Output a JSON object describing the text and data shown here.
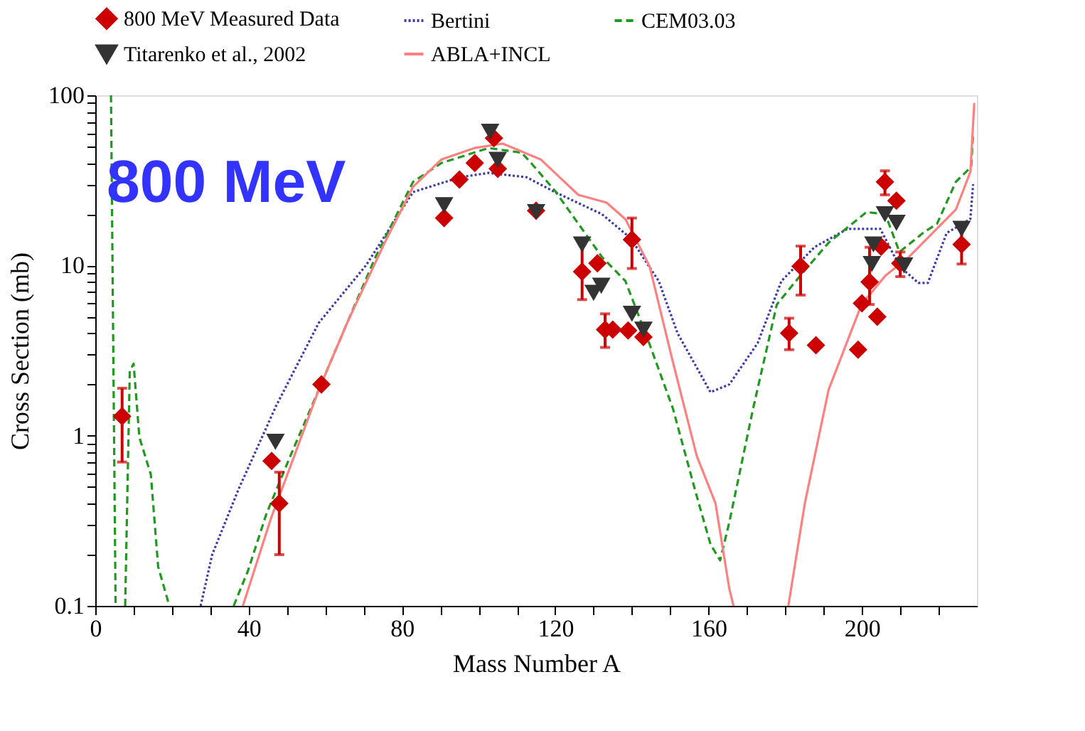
{
  "chart_data": {
    "type": "line",
    "xlabel": "Mass Number A",
    "ylabel": "Cross Section (mb)",
    "annotations": [
      "800 MeV"
    ],
    "log": "y",
    "grid": false,
    "legend": "top",
    "xlim": [
      0,
      230
    ],
    "ylim": [
      0.1,
      100
    ],
    "xticks": [
      0,
      {
        "value": 10,
        "label": null
      },
      {
        "value": 20,
        "label": null
      },
      {
        "value": 30,
        "label": null
      },
      40,
      {
        "value": 50,
        "label": null
      },
      {
        "value": 60,
        "label": null
      },
      {
        "value": 70,
        "label": null
      },
      80,
      {
        "value": 90,
        "label": null
      },
      {
        "value": 100,
        "label": null
      },
      {
        "value": 110,
        "label": null
      },
      120,
      {
        "value": 130,
        "label": null
      },
      {
        "value": 140,
        "label": null
      },
      {
        "value": 150,
        "label": null
      },
      160,
      {
        "value": 170,
        "label": null
      },
      {
        "value": 180,
        "label": null
      },
      {
        "value": 190,
        "label": null
      },
      200,
      {
        "value": 210,
        "label": null
      },
      {
        "value": 220,
        "label": null
      }
    ],
    "yticks": [
      0.1,
      {
        "value": 0.2,
        "label": null
      },
      {
        "value": 0.3,
        "label": null
      },
      {
        "value": 0.4,
        "label": null
      },
      {
        "value": 0.5,
        "label": null
      },
      {
        "value": 0.6,
        "label": null
      },
      {
        "value": 0.7,
        "label": null
      },
      {
        "value": 0.8,
        "label": null
      },
      {
        "value": 0.9,
        "label": null
      },
      1,
      {
        "value": 2,
        "label": null
      },
      {
        "value": 3,
        "label": null
      },
      {
        "value": 4,
        "label": null
      },
      {
        "value": 5,
        "label": null
      },
      {
        "value": 6,
        "label": null
      },
      {
        "value": 7,
        "label": null
      },
      {
        "value": 8,
        "label": null
      },
      {
        "value": 9,
        "label": null
      },
      10,
      {
        "value": 20,
        "label": null
      },
      {
        "value": 30,
        "label": null
      },
      {
        "value": 40,
        "label": null
      },
      {
        "value": 50,
        "label": null
      },
      {
        "value": 60,
        "label": null
      },
      {
        "value": 70,
        "label": null
      },
      {
        "value": 80,
        "label": null
      },
      {
        "value": 90,
        "label": null
      },
      100
    ],
    "series": [
      {
        "name": "800 MeV Measured Data",
        "type": "scatter",
        "marker": "diamond",
        "color": "#cc0000",
        "x": [
          7,
          46,
          48,
          59,
          91,
          95,
          99,
          104,
          105,
          115,
          127,
          131,
          133,
          135,
          139,
          140,
          143,
          181,
          184,
          188,
          199,
          200,
          202,
          204,
          205,
          206,
          209,
          210,
          226
        ],
        "values": [
          1.3,
          0.71,
          0.4,
          2.0,
          19,
          32,
          40,
          56,
          37,
          21,
          9.2,
          10.3,
          4.2,
          4.2,
          4.15,
          14.2,
          3.8,
          4.0,
          9.9,
          3.4,
          3.2,
          6.0,
          8.0,
          5.0,
          12.9,
          31,
          24,
          10.3,
          13.3
        ],
        "errors": [
          [
            0.7,
            1.9
          ],
          null,
          [
            0.2,
            0.61
          ],
          null,
          null,
          null,
          null,
          null,
          null,
          null,
          [
            6.3,
            14
          ],
          null,
          [
            3.3,
            5.2
          ],
          null,
          null,
          [
            9.6,
            19
          ],
          null,
          [
            3.2,
            4.9
          ],
          [
            6.7,
            13
          ],
          null,
          null,
          null,
          [
            5.9,
            12.8
          ],
          null,
          null,
          [
            26,
            36
          ],
          null,
          [
            8.6,
            12
          ],
          [
            10.2,
            17.2
          ]
        ]
      },
      {
        "name": "Bertini",
        "line_style": "dotted",
        "marker": "none",
        "color": "#3a3aa8",
        "x": [
          27.5,
          30.5,
          37.3,
          47.2,
          58.3,
          70.6,
          82.9,
          95.2,
          102.6,
          112.5,
          119.9,
          132.2,
          139.6,
          147,
          151.9,
          160.5,
          165.4,
          172.8,
          179,
          187.6,
          196.2,
          204.8,
          209.8,
          214.7,
          217.2,
          222.1,
          228.3,
          229
        ],
        "values": [
          0.1,
          0.2,
          0.48,
          1.5,
          4.6,
          10,
          27,
          33,
          35,
          33,
          27,
          20,
          14.5,
          8.1,
          4.0,
          1.8,
          2.0,
          3.5,
          8.1,
          12.8,
          16.4,
          16.4,
          9.9,
          7.9,
          7.9,
          15.5,
          18.8,
          30
        ]
      },
      {
        "name": "CEM03.03",
        "line_style": "dashed",
        "marker": "none",
        "color": "#1f9a1f",
        "x": [
          4.1,
          5.3,
          6.5,
          7.8,
          9,
          10,
          11.5,
          14.5,
          16.4,
          18.8,
          19.3,
          27,
          36.1,
          39.8,
          44.7,
          50.9,
          58.3,
          65.7,
          73.1,
          82.9,
          90.3,
          102.6,
          111.2,
          113.7,
          119.9,
          132.2,
          138.3,
          144.5,
          150.7,
          156.8,
          160.5,
          163,
          165.4,
          171.6,
          177.8,
          183.9,
          191.3,
          201.2,
          206.1,
          209.8,
          215.9,
          219.6,
          224.5,
          228.5,
          229
        ],
        "values": [
          100,
          0.1,
          null,
          0.1,
          2.4,
          2.65,
          0.98,
          0.59,
          0.17,
          0.11,
          0.1,
          null,
          0.1,
          0.16,
          0.35,
          0.76,
          1.86,
          4.6,
          11.2,
          31,
          40,
          49,
          46,
          40,
          27.5,
          11.2,
          8.1,
          3.5,
          1.44,
          0.45,
          0.23,
          0.185,
          0.31,
          1.44,
          5.9,
          8.7,
          13.6,
          20.6,
          20,
          12,
          15.5,
          17.6,
          31,
          38,
          60
        ]
      },
      {
        "name": "Titarenko et al., 2002",
        "type": "scatter",
        "marker": "triangle-down",
        "color": "#333333",
        "x": [
          47,
          91,
          103,
          105,
          115,
          127,
          130,
          132,
          140,
          143,
          202.6,
          203,
          206,
          209,
          211,
          226
        ],
        "values": [
          0.92,
          22.6,
          61,
          41.7,
          20.6,
          13.3,
          6.9,
          7.6,
          5.2,
          4.2,
          10.2,
          13.3,
          20,
          17.8,
          10.0,
          16.4
        ]
      },
      {
        "name": "ABLA+INCL",
        "line_style": "solid",
        "marker": "none",
        "color": "#ff8080",
        "x": [
          38.5,
          45.9,
          49.6,
          58.3,
          65.7,
          75.5,
          82.9,
          90.3,
          98.9,
          106.3,
          116.2,
          126,
          133.4,
          138.3,
          144.6,
          150.7,
          156.9,
          161.8,
          165.4,
          166.5,
          173,
          180.8,
          185.1,
          191.3,
          199.9,
          206.1,
          212.2,
          218.4,
          224.5,
          228.3,
          229.3
        ],
        "values": [
          0.1,
          0.33,
          0.55,
          1.86,
          4.6,
          13.6,
          29,
          42,
          49,
          52,
          42,
          26,
          23.4,
          18.7,
          9.9,
          2.7,
          0.76,
          0.4,
          0.126,
          0.1,
          null,
          0.1,
          0.4,
          1.86,
          5.9,
          8.7,
          11.2,
          15.5,
          21.3,
          35.5,
          90
        ]
      }
    ]
  }
}
